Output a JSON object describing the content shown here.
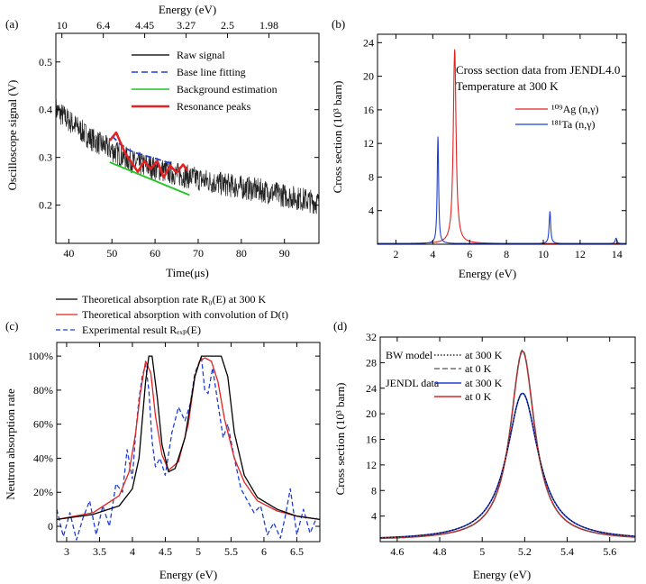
{
  "chart_data": [
    {
      "panel": "(a)",
      "type": "line",
      "xlabel": "Time(μs)",
      "ylabel": "Oscilloscope signal (V)",
      "top_axis_label": "Energy (eV)",
      "top_axis_ticks": [
        {
          "label": "10",
          "time": 38.4
        },
        {
          "label": "6.4",
          "time": 48.0
        },
        {
          "label": "4.45",
          "time": 57.6
        },
        {
          "label": "3.27",
          "time": 67.2
        },
        {
          "label": "2.5",
          "time": 76.8
        },
        {
          "label": "1.98",
          "time": 86.4
        }
      ],
      "xlim": [
        37,
        98
      ],
      "ylim": [
        0.12,
        0.56
      ],
      "xticks": [
        40,
        50,
        60,
        70,
        80,
        90
      ],
      "yticks": [
        0.2,
        0.3,
        0.4,
        0.5
      ],
      "legend_position": "top-right",
      "series": [
        {
          "name": "Raw signal",
          "color": "#222222",
          "style": "noisy",
          "trend_x": [
            37,
            45,
            55,
            65,
            75,
            85,
            98
          ],
          "trend_y": [
            0.4,
            0.34,
            0.29,
            0.265,
            0.245,
            0.23,
            0.205
          ]
        },
        {
          "name": "Base line fitting",
          "color": "#1f3fd6",
          "style": "dashed",
          "x": [
            50,
            52,
            54,
            56,
            58,
            60,
            62,
            64
          ],
          "y": [
            0.345,
            0.327,
            0.315,
            0.308,
            0.303,
            0.298,
            0.292,
            0.287
          ]
        },
        {
          "name": "Background estimation",
          "color": "#22c322",
          "style": "solid",
          "x": [
            49.5,
            68
          ],
          "y": [
            0.29,
            0.221
          ]
        },
        {
          "name": "Resonance peaks",
          "color": "#e32222",
          "style": "solid",
          "x": [
            49.5,
            51,
            53,
            54.5,
            56,
            57.5,
            59,
            60.5,
            62,
            63.5,
            65,
            66.5,
            67.5
          ],
          "y": [
            0.335,
            0.352,
            0.31,
            0.29,
            0.27,
            0.292,
            0.276,
            0.293,
            0.258,
            0.283,
            0.268,
            0.285,
            0.272
          ]
        }
      ]
    },
    {
      "panel": "(b)",
      "type": "line",
      "xlabel": "Energy (eV)",
      "ylabel": "Cross section (10³ barn)",
      "xlim": [
        1,
        14.5
      ],
      "ylim": [
        0,
        25
      ],
      "xticks": [
        2,
        4,
        6,
        8,
        10,
        12,
        14
      ],
      "yticks": [
        4,
        8,
        12,
        16,
        20,
        24
      ],
      "annotation": [
        "Cross section data from JENDL4.0",
        "Temperature at 300 K"
      ],
      "series": [
        {
          "name": "¹⁰⁹Ag  (n,γ)",
          "color": "#e32222",
          "peaks": [
            {
              "E0": 5.19,
              "height": 23.1,
              "gamma": 0.18
            }
          ]
        },
        {
          "name": "¹⁸¹Ta  (n,γ)",
          "color": "#1f3fd6",
          "peaks": [
            {
              "E0": 4.28,
              "height": 12.7,
              "gamma": 0.09
            },
            {
              "E0": 10.36,
              "height": 3.8,
              "gamma": 0.1
            },
            {
              "E0": 13.95,
              "height": 0.65,
              "gamma": 0.1
            }
          ]
        }
      ]
    },
    {
      "panel": "(c)",
      "type": "line",
      "xlabel": "Energy (eV)",
      "ylabel": "Neutron absorption rate",
      "xlim": [
        2.85,
        6.85
      ],
      "ylim": [
        -0.09,
        1.08
      ],
      "xticks": [
        3,
        3.5,
        4,
        4.5,
        5,
        5.5,
        6,
        6.5
      ],
      "yticks": [
        0,
        0.2,
        0.4,
        0.6,
        0.8,
        1.0
      ],
      "ytick_labels": [
        "0",
        "20%",
        "40%",
        "60%",
        "80%",
        "100%"
      ],
      "legend_position": "above-plot",
      "series": [
        {
          "name": "Theoretical absorption rate R₀(E) at 300 K",
          "color": "#000000",
          "style": "solid",
          "x": [
            2.85,
            3.4,
            3.8,
            4.0,
            4.1,
            4.2,
            4.25,
            4.3,
            4.38,
            4.45,
            4.55,
            4.65,
            4.8,
            4.95,
            5.05,
            5.1,
            5.2,
            5.35,
            5.45,
            5.55,
            5.7,
            5.9,
            6.2,
            6.5,
            6.85
          ],
          "y": [
            0.04,
            0.07,
            0.12,
            0.22,
            0.4,
            0.85,
            1.0,
            1.0,
            0.75,
            0.48,
            0.32,
            0.34,
            0.52,
            0.88,
            1.0,
            1.0,
            1.0,
            1.0,
            0.88,
            0.55,
            0.3,
            0.17,
            0.1,
            0.06,
            0.04
          ]
        },
        {
          "name": "Theoretical absorption with convolution of D(t)",
          "color": "#e32222",
          "style": "solid",
          "x": [
            2.85,
            3.4,
            3.8,
            3.95,
            4.05,
            4.12,
            4.2,
            4.28,
            4.35,
            4.45,
            4.55,
            4.7,
            4.85,
            4.95,
            5.02,
            5.1,
            5.2,
            5.3,
            5.4,
            5.55,
            5.7,
            5.9,
            6.2,
            6.5,
            6.85
          ],
          "y": [
            0.04,
            0.08,
            0.18,
            0.32,
            0.55,
            0.78,
            0.97,
            0.9,
            0.65,
            0.42,
            0.33,
            0.38,
            0.6,
            0.88,
            0.97,
            0.99,
            0.97,
            0.85,
            0.63,
            0.4,
            0.26,
            0.15,
            0.09,
            0.06,
            0.04
          ]
        },
        {
          "name": "Experimental result Rₑₓₚ(E)",
          "color": "#1f3fd6",
          "style": "dashed",
          "x": [
            2.85,
            2.95,
            3.05,
            3.15,
            3.25,
            3.35,
            3.45,
            3.55,
            3.65,
            3.75,
            3.85,
            3.92,
            4.0,
            4.05,
            4.1,
            4.15,
            4.2,
            4.25,
            4.3,
            4.35,
            4.42,
            4.5,
            4.6,
            4.7,
            4.8,
            4.88,
            4.95,
            5.0,
            5.05,
            5.1,
            5.15,
            5.22,
            5.3,
            5.38,
            5.45,
            5.55,
            5.65,
            5.75,
            5.85,
            5.95,
            6.05,
            6.15,
            6.25,
            6.32,
            6.4,
            6.5,
            6.6,
            6.7,
            6.8
          ],
          "y": [
            0.1,
            -0.06,
            0.08,
            -0.08,
            0.05,
            0.15,
            -0.05,
            0.12,
            0.0,
            0.25,
            0.2,
            0.45,
            0.28,
            0.55,
            0.75,
            0.88,
            0.95,
            0.8,
            0.5,
            0.35,
            0.4,
            0.3,
            0.55,
            0.7,
            0.62,
            0.72,
            0.9,
            0.95,
            0.99,
            0.8,
            0.78,
            0.93,
            0.72,
            0.52,
            0.6,
            0.4,
            0.22,
            0.15,
            0.08,
            0.12,
            -0.05,
            0.02,
            -0.07,
            0.05,
            0.22,
            -0.05,
            0.1,
            -0.04,
            0.05
          ]
        }
      ]
    },
    {
      "panel": "(d)",
      "type": "line",
      "xlabel": "Energy (eV)",
      "ylabel": "Cross section (10³ barn)",
      "xlim": [
        4.52,
        5.72
      ],
      "ylim": [
        0,
        32
      ],
      "xticks": [
        4.6,
        4.8,
        5.0,
        5.2,
        5.4,
        5.6
      ],
      "xtick_labels": [
        "4.6",
        "4.8",
        "5",
        "5.2",
        "5.4",
        "5.6"
      ],
      "yticks": [
        4,
        8,
        12,
        16,
        20,
        24,
        28,
        32
      ],
      "legend_position": "top-left",
      "legend_groups": [
        "BW model",
        "JENDL data"
      ],
      "series": [
        {
          "group": "BW model",
          "name": "at 300 K",
          "color": "#000000",
          "style": "dotted",
          "E0": 5.19,
          "height": 23.0,
          "gamma": 0.18
        },
        {
          "group": "BW model",
          "name": "at 0 K",
          "color": "#555555",
          "style": "dashed",
          "E0": 5.19,
          "height": 29.8,
          "gamma": 0.14
        },
        {
          "group": "JENDL data",
          "name": "at 300 K",
          "color": "#1f3fd6",
          "style": "solid",
          "E0": 5.19,
          "height": 23.0,
          "gamma": 0.18
        },
        {
          "group": "JENDL data",
          "name": "at 0 K",
          "color": "#e32222",
          "style": "solid",
          "E0": 5.19,
          "height": 29.6,
          "gamma": 0.14
        }
      ]
    }
  ]
}
